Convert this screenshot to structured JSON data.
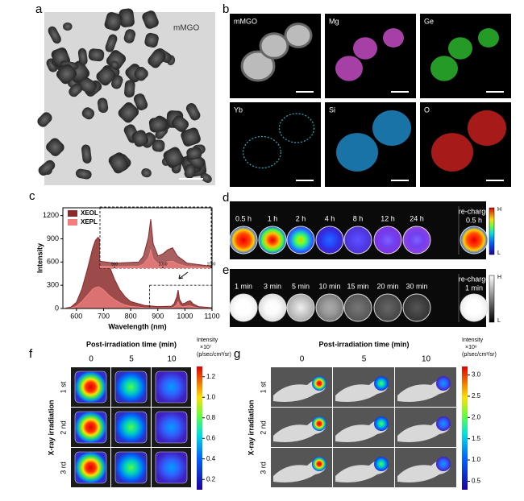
{
  "panels": {
    "a": {
      "label": "a",
      "sample": "mMGO"
    },
    "b": {
      "label": "b",
      "tiles": [
        "mMGO",
        "Mg",
        "Ge",
        "Yb",
        "Si",
        "O"
      ]
    },
    "c": {
      "label": "c",
      "chart_data": {
        "type": "area",
        "xlabel": "Wavelength (nm)",
        "ylabel": "Intensity",
        "x": [
          560,
          580,
          600,
          620,
          640,
          660,
          670,
          680,
          690,
          700,
          720,
          740,
          760,
          780,
          800,
          850,
          900,
          950,
          960,
          970,
          975,
          980,
          990,
          1000,
          1010,
          1020,
          1030,
          1050,
          1100
        ],
        "series": [
          {
            "name": "XEOL",
            "color": "#8b2a2a",
            "values": [
              5,
              20,
              80,
              250,
              500,
              780,
              880,
              920,
              870,
              780,
              560,
              380,
              240,
              150,
              90,
              40,
              25,
              30,
              60,
              150,
              240,
              120,
              60,
              70,
              90,
              100,
              60,
              25,
              10
            ]
          },
          {
            "name": "XEPL",
            "color": "#f08080",
            "values": [
              2,
              8,
              30,
              90,
              170,
              250,
              270,
              280,
              265,
              240,
              170,
              115,
              75,
              45,
              28,
              12,
              8,
              10,
              20,
              50,
              90,
              45,
              22,
              26,
              32,
              35,
              22,
              9,
              4
            ]
          }
        ],
        "xlim": [
          550,
          1100
        ],
        "ylim": [
          0,
          1300
        ],
        "xticks": [
          600,
          700,
          800,
          900,
          1000,
          1100
        ],
        "yticks": [
          0,
          300,
          600,
          900,
          1200
        ],
        "inset": {
          "xlim": [
            870,
            1100
          ],
          "ylim": [
            0,
            300
          ],
          "xticks": [
            900,
            1000,
            1100
          ]
        }
      }
    },
    "d": {
      "label": "d",
      "times": [
        "0.5 h",
        "1 h",
        "2 h",
        "4 h",
        "8 h",
        "12 h",
        "24 h",
        "0.5 h"
      ],
      "recharge": "re-charge",
      "scale_high": "H",
      "scale_low": "L"
    },
    "e": {
      "label": "e",
      "times": [
        "1 min",
        "3 min",
        "5 min",
        "10 min",
        "15 min",
        "20 min",
        "30 min",
        "1 min"
      ],
      "recharge": "re-charge",
      "scale_high": "H",
      "scale_low": "L"
    },
    "f": {
      "label": "f",
      "title": "Post-irradiation time (min)",
      "columns": [
        "0",
        "5",
        "10"
      ],
      "rows": [
        "1 st",
        "2 nd",
        "3 rd"
      ],
      "row_axis": "X-ray irradiation",
      "colorbar": {
        "title": "Intensity",
        "multiplier": "×10⁷",
        "unit": "(p/sec/cm²/sr)",
        "lim": [
          0.1,
          1.3
        ],
        "ticks": [
          1.2,
          {
            "value": 1,
            "label": "1.0"
          },
          0.8,
          0.6,
          0.4,
          0.2
        ]
      }
    },
    "g": {
      "label": "g",
      "title": "Post-irradiation time (min)",
      "columns": [
        "0",
        "5",
        "10"
      ],
      "rows": [
        "1 st",
        "2 nd",
        "3 rd"
      ],
      "row_axis": "X-ray irradiation",
      "colorbar": {
        "title": "Intensity",
        "multiplier": "×10⁶",
        "unit": "(p/sec/cm²/sr)",
        "lim": [
          0.3,
          3.2
        ],
        "ticks": [
          {
            "value": 3,
            "label": "3.0"
          },
          2.5,
          {
            "value": 2,
            "label": "2.0"
          },
          1.5,
          {
            "value": 1,
            "label": "1.0"
          },
          0.5
        ]
      }
    }
  }
}
